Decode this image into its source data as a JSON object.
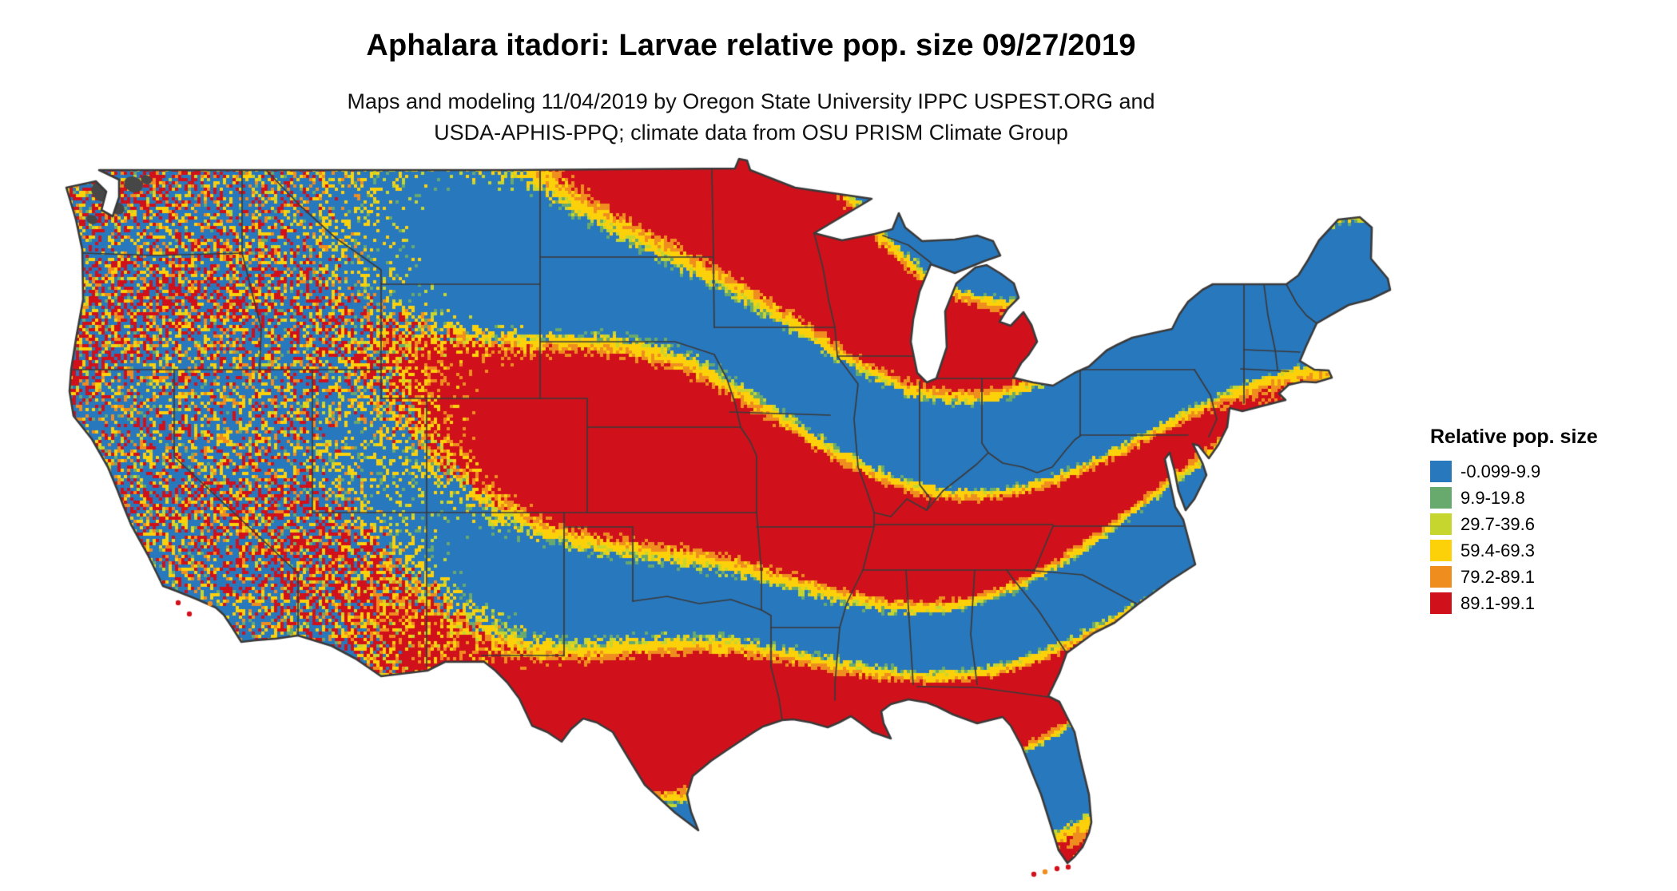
{
  "header": {
    "title": "Aphalara itadori: Larvae relative pop. size 09/27/2019",
    "subtitle_line1": "Maps and modeling 11/04/2019 by Oregon State University IPPC USPEST.ORG and",
    "subtitle_line2": "USDA-APHIS-PPQ; climate data from OSU PRISM Climate Group"
  },
  "legend": {
    "title": "Relative pop. size",
    "items": [
      {
        "label": "-0.099-9.9",
        "color": "#2878be"
      },
      {
        "label": "9.9-19.8",
        "color": "#68a96d"
      },
      {
        "label": "29.7-39.6",
        "color": "#c6d62f"
      },
      {
        "label": "59.4-69.3",
        "color": "#fdd10a"
      },
      {
        "label": "79.2-89.1",
        "color": "#ef8d1f"
      },
      {
        "label": "89.1-99.1",
        "color": "#d0111b"
      }
    ]
  },
  "map": {
    "region": "Contiguous United States",
    "border_color": "#3a3a3a",
    "background_color": "#ffffff",
    "nodata_color": "#474747"
  }
}
